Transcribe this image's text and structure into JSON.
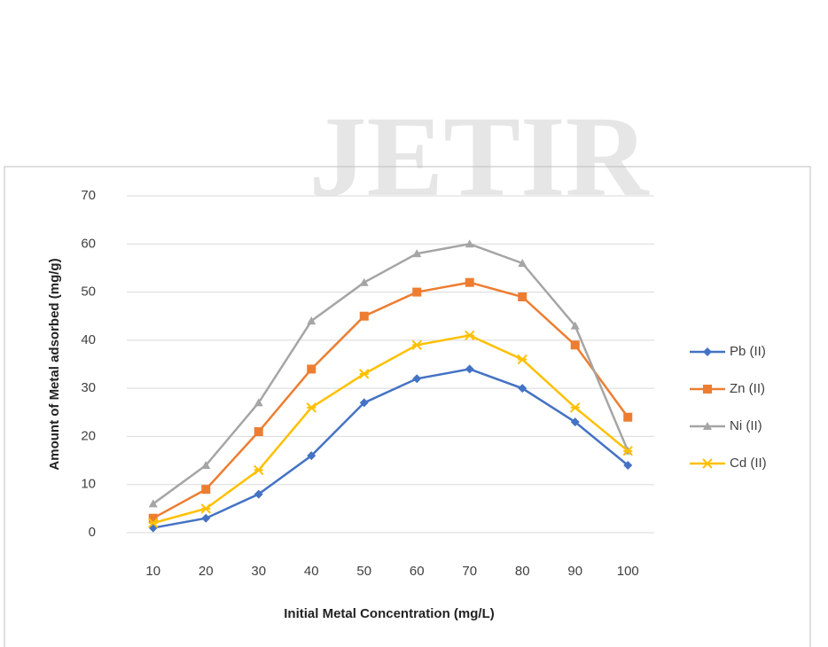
{
  "watermark": "JETIR",
  "chart_data": {
    "type": "line",
    "x_label": "Initial Metal Concentration (mg/L)",
    "y_label": "Amount of Metal adsorbed (mg/g)",
    "categories": [
      "10",
      "20",
      "30",
      "40",
      "50",
      "60",
      "70",
      "80",
      "90",
      "100"
    ],
    "series": [
      {
        "name": "Pb (II)",
        "color": "#4472c4",
        "marker": "diamond",
        "values": [
          1,
          3,
          8,
          16,
          27,
          32,
          34,
          30,
          23,
          14
        ]
      },
      {
        "name": "Zn (II)",
        "color": "#ed7d31",
        "marker": "square",
        "values": [
          3,
          9,
          21,
          34,
          45,
          50,
          52,
          49,
          39,
          24
        ]
      },
      {
        "name": "Ni (II)",
        "color": "#a5a5a5",
        "marker": "triangle",
        "values": [
          6,
          14,
          27,
          44,
          52,
          58,
          60,
          56,
          43,
          17
        ]
      },
      {
        "name": "Cd (II)",
        "color": "#ffc000",
        "marker": "star",
        "values": [
          2,
          5,
          13,
          26,
          33,
          39,
          41,
          36,
          26,
          17
        ]
      }
    ],
    "ylim": [
      0,
      70
    ],
    "yticks": [
      0,
      10,
      20,
      30,
      40,
      50,
      60,
      70
    ],
    "grid": true,
    "legend": "right"
  }
}
